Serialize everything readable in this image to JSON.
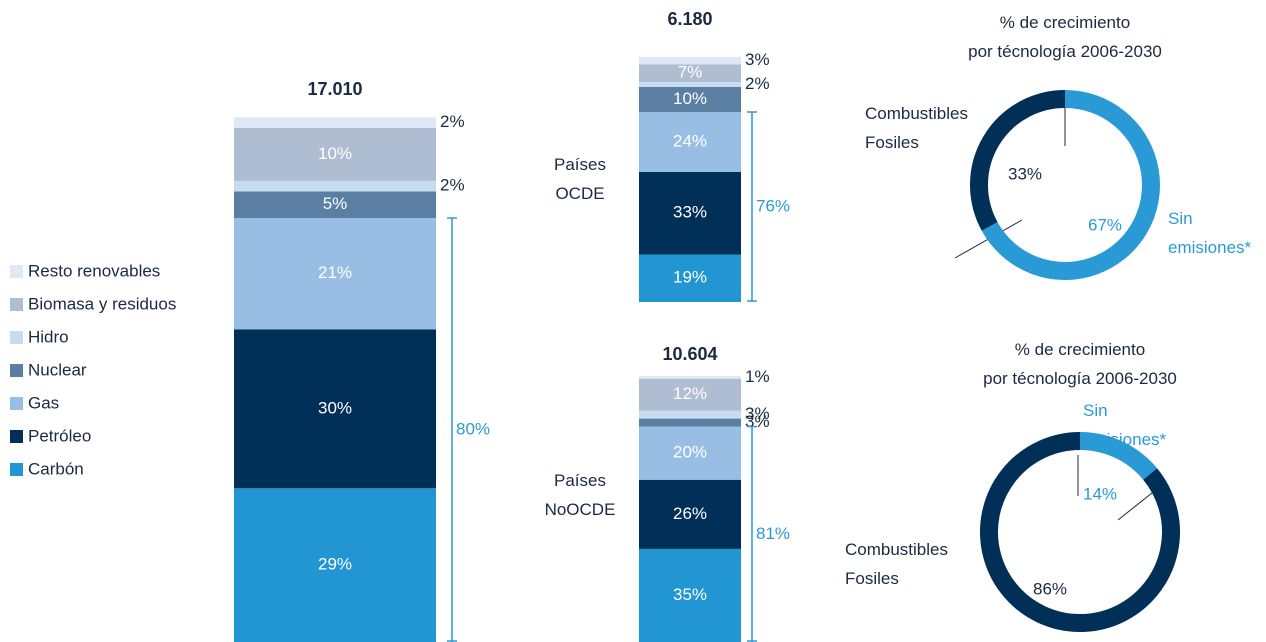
{
  "chart_data": [
    {
      "type": "bar",
      "stacked": true,
      "title": "17.010",
      "ylim": [
        0,
        100
      ],
      "legend": "left",
      "series": [
        {
          "name": "Carbón",
          "color": "#2196d3",
          "values": [
            29
          ],
          "value_labels": [
            "29%"
          ]
        },
        {
          "name": "Petróleo",
          "color": "#003057",
          "values": [
            30
          ],
          "value_labels": [
            "30%"
          ]
        },
        {
          "name": "Gas",
          "color": "#98bfe3",
          "values": [
            21
          ],
          "value_labels": [
            "21%"
          ]
        },
        {
          "name": "Nuclear",
          "color": "#5b7fa3",
          "values": [
            5
          ],
          "value_labels": [
            "5%"
          ]
        },
        {
          "name": "Hidro",
          "color": "#c7dcf1",
          "values": [
            2
          ],
          "value_labels": [
            "2%"
          ]
        },
        {
          "name": "Biomasa y residuos",
          "color": "#afbdd2",
          "values": [
            10
          ],
          "value_labels": [
            "10%"
          ]
        },
        {
          "name": "Resto renovables",
          "color": "#dfe9f5",
          "values": [
            2
          ],
          "value_labels": [
            "2%"
          ]
        }
      ],
      "bracket": {
        "value": 80,
        "label": "80%"
      }
    },
    {
      "type": "bar",
      "stacked": true,
      "title": "6.180",
      "categories": [
        "Países\nOCDE"
      ],
      "ylim": [
        0,
        100
      ],
      "series": [
        {
          "color": "#2196d3",
          "values": [
            19
          ],
          "value_labels": [
            "19%"
          ]
        },
        {
          "color": "#003057",
          "values": [
            33
          ],
          "value_labels": [
            "33%"
          ]
        },
        {
          "color": "#98bfe3",
          "values": [
            24
          ],
          "value_labels": [
            "24%"
          ]
        },
        {
          "color": "#5b7fa3",
          "values": [
            10
          ],
          "value_labels": [
            "10%"
          ]
        },
        {
          "color": "#c7dcf1",
          "values": [
            2
          ],
          "value_labels": [
            "2%"
          ]
        },
        {
          "color": "#afbdd2",
          "values": [
            7
          ],
          "value_labels": [
            "7%"
          ]
        },
        {
          "color": "#dfe9f5",
          "values": [
            3
          ],
          "value_labels": [
            "3%"
          ]
        }
      ],
      "bracket": {
        "value": 76,
        "label": "76%"
      }
    },
    {
      "type": "bar",
      "stacked": true,
      "title": "10.604",
      "categories": [
        "Países\nNoOCDE"
      ],
      "ylim": [
        0,
        100
      ],
      "series": [
        {
          "color": "#2196d3",
          "values": [
            35
          ],
          "value_labels": [
            "35%"
          ]
        },
        {
          "color": "#003057",
          "values": [
            26
          ],
          "value_labels": [
            "26%"
          ]
        },
        {
          "color": "#98bfe3",
          "values": [
            20
          ],
          "value_labels": [
            "20%"
          ]
        },
        {
          "color": "#5b7fa3",
          "values": [
            3
          ],
          "value_labels": [
            "3%"
          ]
        },
        {
          "color": "#c7dcf1",
          "values": [
            3
          ],
          "value_labels": [
            "3%"
          ]
        },
        {
          "color": "#afbdd2",
          "values": [
            12
          ],
          "value_labels": [
            "12%"
          ]
        },
        {
          "color": "#dfe9f5",
          "values": [
            1
          ],
          "value_labels": [
            "1%"
          ]
        }
      ],
      "bracket": {
        "value": 81,
        "label": "81%"
      }
    },
    {
      "type": "pie",
      "donut": true,
      "title": "% de crecimiento\npor técnología 2006-2030",
      "categories": [
        "Sin\nemisiones*",
        "Combustibles\nFosiles"
      ],
      "colors": [
        "#2a9ad6",
        "#003057"
      ],
      "values": [
        67,
        33
      ],
      "value_labels": [
        "67%",
        "33%"
      ]
    },
    {
      "type": "pie",
      "donut": true,
      "title": "% de crecimiento\npor técnología 2006-2030",
      "categories": [
        "Sin\nemisiones*",
        "Combustibles\nFosiles"
      ],
      "colors": [
        "#2a9ad6",
        "#003057"
      ],
      "values": [
        14,
        86
      ],
      "value_labels": [
        "14%",
        "86%"
      ]
    }
  ]
}
